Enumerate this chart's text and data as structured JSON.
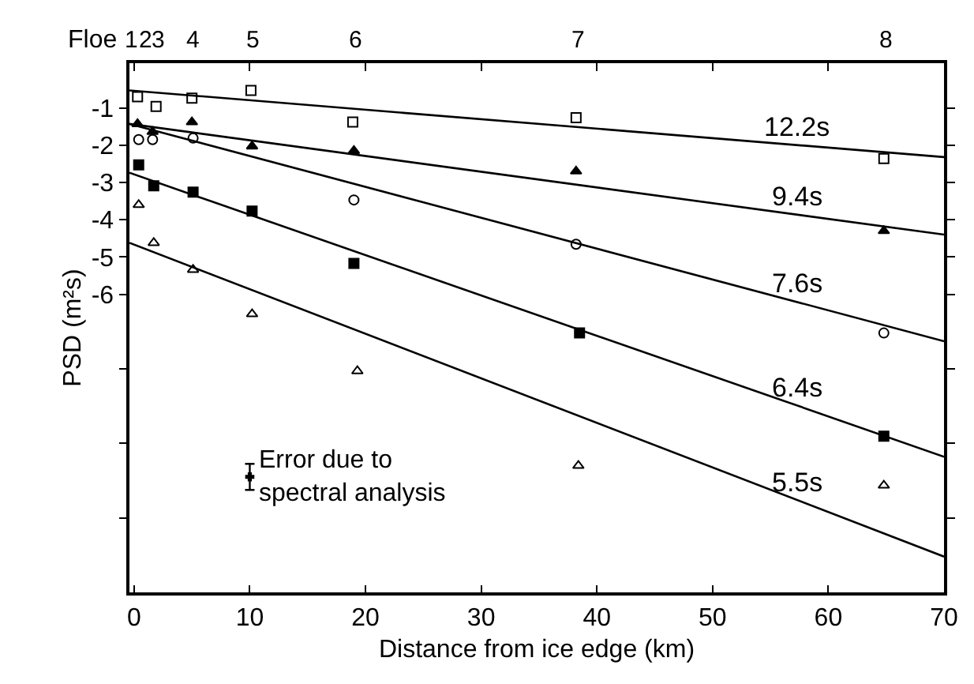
{
  "chart_data": {
    "type": "scatter",
    "xlabel": "Distance from ice edge (km)",
    "ylabel": "PSD (m²s)",
    "xlim": [
      -0.4,
      70
    ],
    "xticks": [
      0,
      10,
      20,
      30,
      40,
      50,
      60,
      70
    ],
    "ylim": [
      -14,
      0.2
    ],
    "yticks": [
      -1,
      -2,
      -3,
      -4,
      -5,
      -6,
      {
        "value": -8,
        "label": null
      },
      {
        "value": -10,
        "label": null
      },
      {
        "value": -12,
        "label": null
      }
    ],
    "series": [
      {
        "marker": "square-open",
        "color": "#000000",
        "x": [
          0.3,
          1.9,
          5.0,
          10.1,
          18.9,
          38.2,
          64.8
        ],
        "values": [
          -0.7,
          -0.96,
          -0.74,
          -0.53,
          -1.38,
          -1.26,
          -2.36
        ]
      },
      {
        "marker": "triangle",
        "color": "#000000",
        "x": [
          0.3,
          1.6,
          5.0,
          10.2,
          19.0,
          38.2,
          64.8
        ],
        "values": [
          -1.43,
          -1.64,
          -1.38,
          -2.03,
          -2.15,
          -2.7,
          -4.3
        ]
      },
      {
        "marker": "circle-open",
        "color": "#000000",
        "x": [
          0.4,
          1.6,
          5.1,
          19.0,
          38.2,
          64.8
        ],
        "values": [
          -1.85,
          -1.85,
          -1.81,
          -3.47,
          -4.66,
          -7.04
        ]
      },
      {
        "marker": "square",
        "color": "#000000",
        "x": [
          0.4,
          1.7,
          5.1,
          10.2,
          19.0,
          38.5,
          64.8
        ],
        "values": [
          -2.53,
          -3.09,
          -3.26,
          -3.77,
          -5.17,
          -7.04,
          -9.81
        ]
      },
      {
        "marker": "triangle-open",
        "color": "#000000",
        "x": [
          0.4,
          1.7,
          5.1,
          10.2,
          19.3,
          38.4,
          64.8
        ],
        "values": [
          -3.6,
          -4.62,
          -5.34,
          -6.53,
          -8.06,
          -10.6,
          -11.13
        ]
      },
      {
        "type": "line",
        "name": "12.2s",
        "color": "#000000",
        "x": [
          -0.4,
          70
        ],
        "values": [
          -0.53,
          -2.32
        ]
      },
      {
        "type": "line",
        "name": "9.4s",
        "color": "#000000",
        "x": [
          -0.4,
          70
        ],
        "values": [
          -1.43,
          -4.4
        ]
      },
      {
        "type": "line",
        "name": "7.6s",
        "color": "#000000",
        "x": [
          -0.4,
          70
        ],
        "values": [
          -1.43,
          -7.26
        ]
      },
      {
        "type": "line",
        "name": "6.4s",
        "color": "#000000",
        "x": [
          -0.4,
          70
        ],
        "values": [
          -2.74,
          -10.36
        ]
      },
      {
        "type": "line",
        "name": "5.5s",
        "color": "#000000",
        "x": [
          -0.4,
          70
        ],
        "values": [
          -4.62,
          -13.04
        ]
      },
      {
        "marker": "cross",
        "color": "#000000",
        "x": [
          10
        ],
        "values": [
          -10.9
        ],
        "errors": [
          0.35
        ]
      }
    ],
    "annotations": [
      "Floe",
      "1",
      "2",
      "3",
      "4",
      "5",
      "6",
      "7",
      "8",
      "Error due to\nspectral analysis"
    ]
  }
}
